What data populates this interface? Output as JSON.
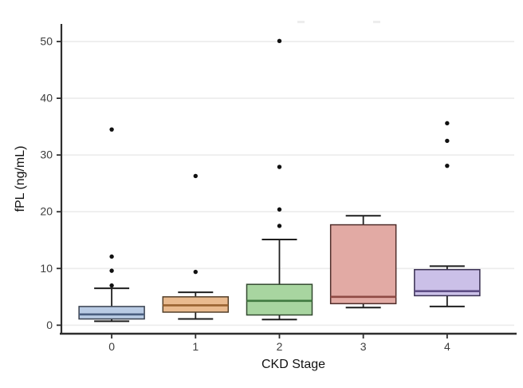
{
  "figure": {
    "background_color": "#ffffff"
  },
  "chart_data": {
    "type": "boxplot",
    "title": "",
    "xlabel": "CKD Stage",
    "ylabel": "fPL (ng/mL)",
    "x_tick_labels": [
      "0",
      "1",
      "2",
      "3",
      "4"
    ],
    "y_ticks": [
      0,
      10,
      20,
      30,
      40,
      50
    ],
    "ylim": [
      -1.5,
      53.1
    ],
    "grid": "horizontal-major-only",
    "legend": "none",
    "gridline_color": "#ececec",
    "axis_line_color": "#2e2e2e",
    "tick_label_color": "#3d3d3d",
    "axis_title_color": "#111111",
    "whisker_color": "#1f1f1f",
    "outlier_color": "#111111",
    "series": [
      {
        "stage": "0",
        "fill": "#b9cbe4",
        "stroke": "#39414f",
        "median_color": "#4a5f80",
        "whisker_low": 0.7,
        "q1": 1.1,
        "median": 1.9,
        "q3": 3.3,
        "whisker_high": 6.5,
        "outliers": [
          7.0,
          9.6,
          12.1,
          34.5
        ]
      },
      {
        "stage": "1",
        "fill": "#e9ba8f",
        "stroke": "#54402a",
        "median_color": "#996230",
        "whisker_low": 1.1,
        "q1": 2.3,
        "median": 3.5,
        "q3": 5.0,
        "whisker_high": 5.8,
        "outliers": [
          9.4,
          26.3
        ]
      },
      {
        "stage": "2",
        "fill": "#a8d5a0",
        "stroke": "#32492f",
        "median_color": "#417a41",
        "whisker_low": 1.0,
        "q1": 1.8,
        "median": 4.3,
        "q3": 7.2,
        "whisker_high": 15.1,
        "outliers": [
          17.5,
          20.4,
          27.9,
          50.1
        ]
      },
      {
        "stage": "3",
        "fill": "#e2aaa4",
        "stroke": "#4f2d2a",
        "median_color": "#8f4a44",
        "whisker_low": 3.1,
        "q1": 3.8,
        "median": 5.0,
        "q3": 17.7,
        "whisker_high": 19.3,
        "outliers": []
      },
      {
        "stage": "4",
        "fill": "#cbc0e8",
        "stroke": "#393052",
        "median_color": "#5d4d85",
        "whisker_low": 3.3,
        "q1": 5.2,
        "median": 6.0,
        "q3": 9.8,
        "whisker_high": 10.4,
        "outliers": [
          28.1,
          32.5,
          35.6
        ]
      }
    ]
  }
}
